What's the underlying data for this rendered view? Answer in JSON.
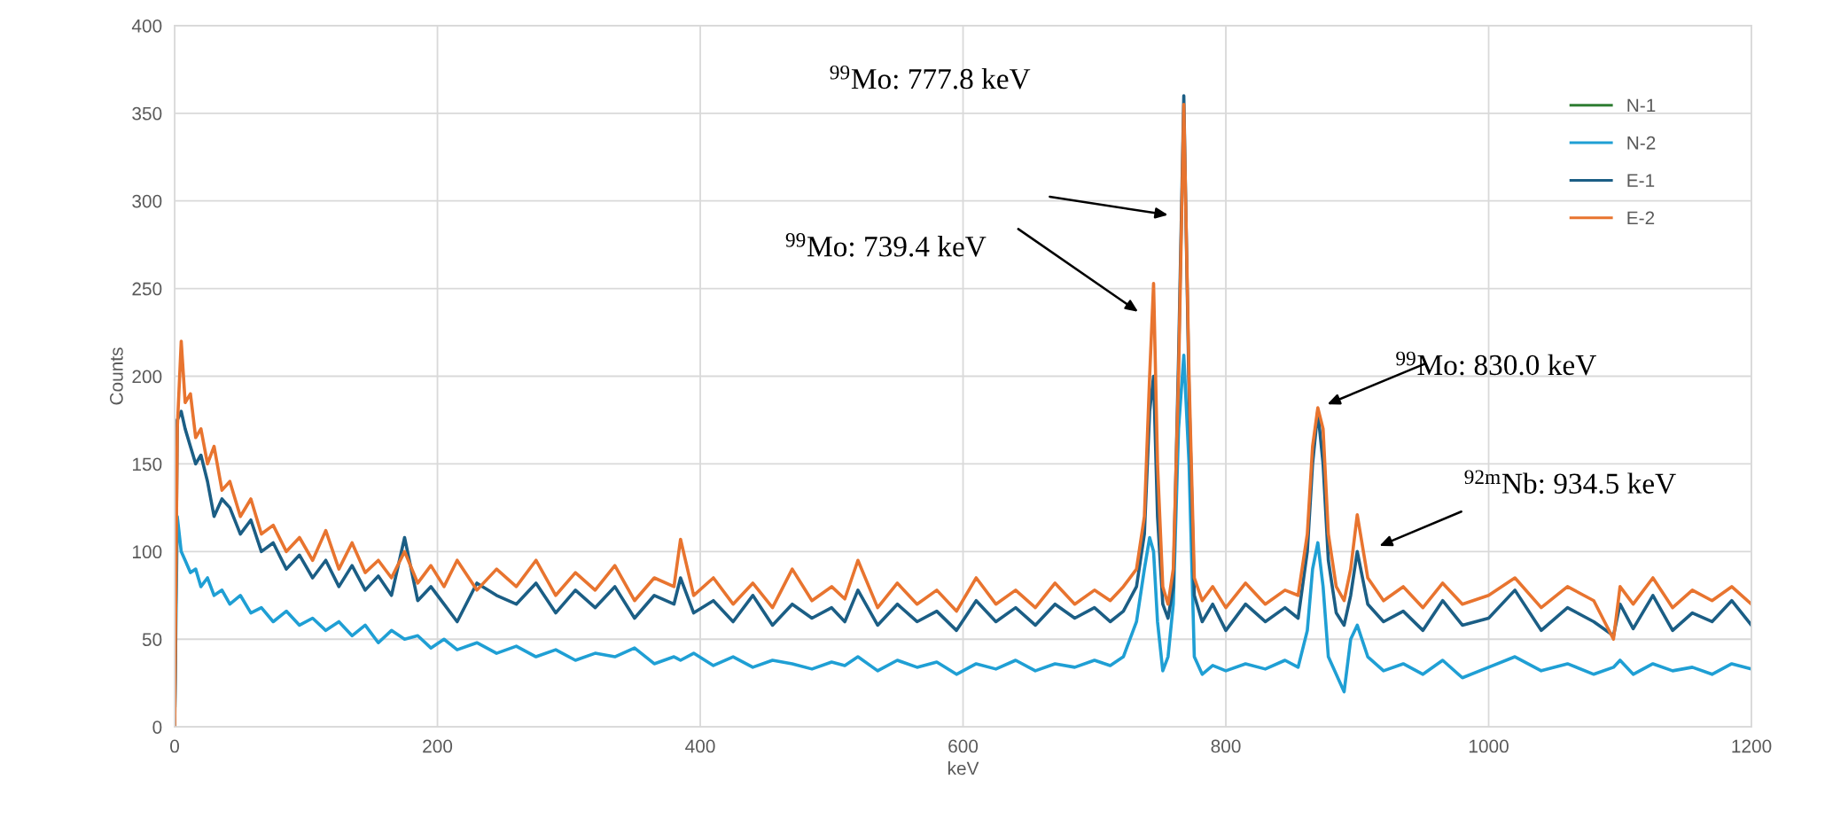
{
  "chart_data": {
    "type": "line",
    "xlabel": "keV",
    "ylabel": "Counts",
    "x": [
      0,
      2,
      5,
      8,
      12,
      16,
      20,
      25,
      30,
      36,
      42,
      50,
      58,
      66,
      75,
      85,
      95,
      105,
      115,
      125,
      135,
      145,
      155,
      165,
      175,
      185,
      195,
      205,
      215,
      230,
      245,
      260,
      275,
      290,
      305,
      320,
      335,
      350,
      365,
      380,
      385,
      395,
      410,
      425,
      440,
      455,
      470,
      485,
      500,
      510,
      520,
      535,
      550,
      565,
      580,
      595,
      610,
      625,
      640,
      655,
      670,
      685,
      700,
      712,
      722,
      732,
      738,
      742,
      745,
      748,
      752,
      756,
      760,
      764,
      768,
      772,
      776,
      782,
      790,
      800,
      815,
      830,
      845,
      855,
      862,
      866,
      870,
      874,
      878,
      884,
      890,
      895,
      900,
      908,
      920,
      935,
      950,
      965,
      980,
      1000,
      1020,
      1040,
      1060,
      1080,
      1095,
      1100,
      1110,
      1125,
      1140,
      1155,
      1170,
      1185,
      1200
    ],
    "series": [
      {
        "name": "N-1",
        "color": "#2e7d32",
        "values": [
          null,
          null,
          null,
          null,
          null,
          null,
          null,
          null,
          null,
          null,
          null,
          null,
          null,
          null,
          null,
          null,
          null,
          null,
          null,
          null,
          null,
          null,
          null,
          null,
          null,
          null,
          null,
          null,
          null,
          null,
          null,
          null,
          null,
          null,
          null,
          null,
          null,
          null,
          null,
          null,
          null,
          null,
          null,
          null,
          null,
          null,
          null,
          null,
          null,
          null,
          null,
          null,
          null,
          null,
          null,
          null,
          null,
          null,
          null,
          null,
          null,
          null,
          null,
          null,
          null,
          null,
          null,
          null,
          null,
          null,
          null,
          null,
          null,
          null,
          null,
          null,
          null,
          null,
          null,
          null,
          null,
          null,
          null,
          null,
          null,
          null,
          null,
          null,
          null,
          null,
          null,
          null,
          null,
          null,
          null,
          null,
          null,
          null,
          null,
          null,
          null,
          null,
          null,
          null,
          null,
          null,
          null,
          null,
          null,
          null,
          null,
          null,
          null
        ]
      },
      {
        "name": "N-2",
        "color": "#1f9fd4",
        "values": [
          0,
          120,
          100,
          95,
          88,
          90,
          80,
          85,
          75,
          78,
          70,
          75,
          65,
          68,
          60,
          66,
          58,
          62,
          55,
          60,
          52,
          58,
          48,
          55,
          50,
          52,
          45,
          50,
          44,
          48,
          42,
          46,
          40,
          44,
          38,
          42,
          40,
          45,
          36,
          40,
          38,
          42,
          35,
          40,
          34,
          38,
          36,
          33,
          37,
          35,
          40,
          32,
          38,
          34,
          37,
          30,
          36,
          33,
          38,
          32,
          36,
          34,
          38,
          35,
          40,
          60,
          90,
          108,
          100,
          60,
          32,
          40,
          70,
          170,
          212,
          150,
          40,
          30,
          35,
          32,
          36,
          33,
          38,
          34,
          55,
          90,
          105,
          80,
          40,
          30,
          20,
          50,
          58,
          40,
          32,
          36,
          30,
          38,
          28,
          34,
          40,
          32,
          36,
          30,
          34,
          38,
          30,
          36,
          32,
          34,
          30,
          36,
          33
        ]
      },
      {
        "name": "E-1",
        "color": "#1b5e85",
        "values": [
          0,
          175,
          180,
          170,
          160,
          150,
          155,
          140,
          120,
          130,
          125,
          110,
          118,
          100,
          105,
          90,
          98,
          85,
          95,
          80,
          92,
          78,
          86,
          75,
          108,
          72,
          80,
          70,
          60,
          82,
          75,
          70,
          82,
          65,
          78,
          68,
          80,
          62,
          75,
          70,
          85,
          65,
          72,
          60,
          75,
          58,
          70,
          62,
          68,
          60,
          78,
          58,
          70,
          60,
          66,
          55,
          72,
          60,
          68,
          58,
          70,
          62,
          68,
          60,
          66,
          80,
          110,
          180,
          200,
          120,
          70,
          62,
          80,
          210,
          360,
          190,
          75,
          60,
          70,
          55,
          70,
          60,
          68,
          62,
          100,
          150,
          180,
          150,
          95,
          65,
          58,
          75,
          100,
          70,
          60,
          66,
          55,
          72,
          58,
          62,
          78,
          55,
          68,
          60,
          52,
          70,
          56,
          75,
          55,
          65,
          60,
          72,
          58
        ]
      },
      {
        "name": "E-2",
        "color": "#e8742f",
        "values": [
          0,
          170,
          220,
          185,
          190,
          165,
          170,
          150,
          160,
          135,
          140,
          120,
          130,
          110,
          115,
          100,
          108,
          95,
          112,
          90,
          105,
          88,
          95,
          85,
          100,
          82,
          92,
          80,
          95,
          78,
          90,
          80,
          95,
          75,
          88,
          78,
          92,
          72,
          85,
          80,
          107,
          75,
          85,
          70,
          82,
          68,
          90,
          72,
          80,
          73,
          95,
          68,
          82,
          70,
          78,
          66,
          85,
          70,
          78,
          68,
          82,
          70,
          78,
          72,
          80,
          90,
          120,
          200,
          253,
          150,
          80,
          70,
          90,
          200,
          355,
          200,
          85,
          72,
          80,
          68,
          82,
          70,
          78,
          75,
          110,
          160,
          182,
          170,
          110,
          80,
          72,
          90,
          121,
          85,
          72,
          80,
          68,
          82,
          70,
          75,
          85,
          68,
          80,
          72,
          50,
          80,
          70,
          85,
          68,
          78,
          72,
          80,
          70
        ]
      }
    ],
    "xlim": [
      0,
      1200
    ],
    "xticks": [
      0,
      200,
      400,
      600,
      800,
      1000,
      1200
    ],
    "ylim": [
      0,
      400
    ],
    "yticks": [
      0,
      50,
      100,
      150,
      200,
      250,
      300,
      350,
      400
    ],
    "grid": true,
    "legend": "top right",
    "annotations": [
      "$^{99}$Mo: 777.8 keV",
      "$^{99}$Mo: 739.4 keV",
      "$^{99}$Mo: 830.0 keV",
      "$^{92m}$Nb: 934.5 keV"
    ]
  }
}
